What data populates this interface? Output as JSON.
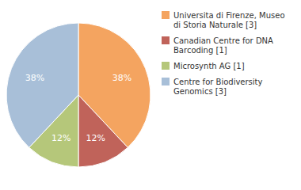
{
  "chart_data": {
    "type": "pie",
    "categories": [
      "Universita di Firenze, Museo\ndi Storia Naturale [3]",
      "Canadian Centre for DNA\nBarcoding [1]",
      "Microsynth AG [1]",
      "Centre for Biodiversity\nGenomics [3]"
    ],
    "values": [
      38,
      12,
      12,
      38
    ],
    "value_labels": [
      "38%",
      "12%",
      "12%",
      "38%"
    ],
    "colors": [
      "#f4a460",
      "#c0635a",
      "#b5c77a",
      "#a8bfd8"
    ],
    "data_labels": true,
    "legend": "right"
  }
}
